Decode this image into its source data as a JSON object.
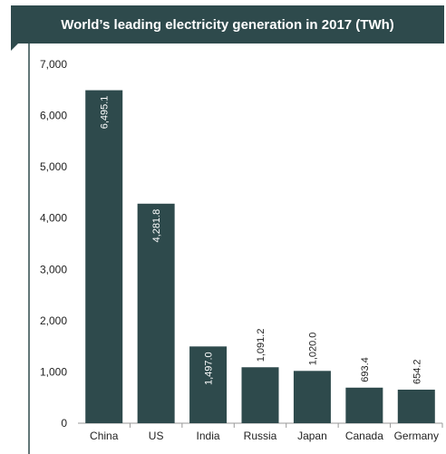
{
  "chart_data": {
    "type": "bar",
    "title": "World’s leading electricity generation in 2017 (TWh)",
    "categories": [
      "China",
      "US",
      "India",
      "Russia",
      "Japan",
      "Canada",
      "Germany"
    ],
    "values": [
      6495.1,
      4281.8,
      1497.0,
      1091.2,
      1020.0,
      693.4,
      654.2
    ],
    "value_labels": [
      "6,495.1",
      "4,281.8",
      "1,497.0",
      "1,091.2",
      "1,020.0",
      "693.4",
      "654.2"
    ],
    "yticks": [
      "0",
      "1,000",
      "2,000",
      "3,000",
      "4,000",
      "5,000",
      "6,000",
      "7,000"
    ],
    "ylim": [
      0,
      7000
    ],
    "xlabel": "",
    "ylabel": "",
    "grid": false,
    "colors": {
      "bar": "#2e4a4c",
      "title_bg": "#2e4a4c",
      "title_text": "#ffffff"
    }
  }
}
